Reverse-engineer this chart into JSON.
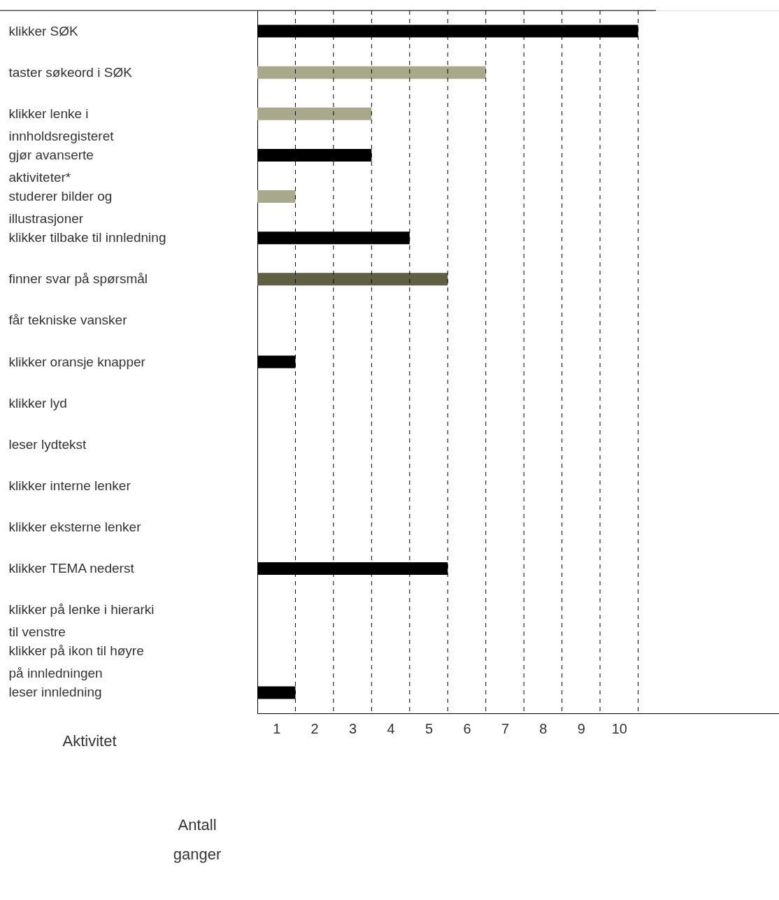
{
  "chart_data": {
    "type": "bar",
    "orientation": "horizontal",
    "annotations": [
      "Aktivitet",
      "Antall\nganger"
    ],
    "categories": [
      "klikker SØK",
      "taster søkeord i SØK",
      "klikker lenke i\ninnholdsregisteret",
      "gjør avanserte\naktiviteter*",
      "studerer bilder og\nillustrasjoner",
      "klikker tilbake til innledning",
      "finner svar på spørsmål",
      "får tekniske vansker",
      "klikker oransje knapper",
      "klikker lyd",
      "leser lydtekst",
      "klikker interne lenker",
      "klikker eksterne lenker",
      "klikker TEMA nederst",
      "klikker på lenke i hierarki\ntil venstre",
      "klikker på ikon til høyre\npå innledningen",
      "leser innledning"
    ],
    "values": [
      10,
      6,
      3,
      3,
      1,
      4,
      5,
      null,
      1,
      null,
      null,
      null,
      null,
      5,
      null,
      null,
      1
    ],
    "colors": [
      "#000000",
      "#a8a88c",
      "#a8a88c",
      "#000000",
      "#a8a88c",
      "#000000",
      "#5f5f46",
      "#000000",
      "#000000",
      "#000000",
      "#000000",
      "#000000",
      "#000000",
      "#000000",
      "#000000",
      "#000000",
      "#000000"
    ],
    "xlim": [
      0,
      13.7
    ],
    "xticks": [
      {
        "value": 0.5,
        "label": "1"
      },
      {
        "value": 1.5,
        "label": "2"
      },
      {
        "value": 2.5,
        "label": "3"
      },
      {
        "value": 3.5,
        "label": "4"
      },
      {
        "value": 4.5,
        "label": "5"
      },
      {
        "value": 5.5,
        "label": "6"
      },
      {
        "value": 6.5,
        "label": "7"
      },
      {
        "value": 7.5,
        "label": "8"
      },
      {
        "value": 8.5,
        "label": "9"
      },
      {
        "value": 9.5,
        "label": "10"
      }
    ],
    "ref_lines": [
      {
        "axis": "x",
        "value": 1,
        "line_style": "dashed"
      },
      {
        "axis": "x",
        "value": 2,
        "line_style": "dashed"
      },
      {
        "axis": "x",
        "value": 3,
        "line_style": "dashed"
      },
      {
        "axis": "x",
        "value": 4,
        "line_style": "dashed"
      },
      {
        "axis": "x",
        "value": 5,
        "line_style": "dashed"
      },
      {
        "axis": "x",
        "value": 6,
        "line_style": "dashed"
      },
      {
        "axis": "x",
        "value": 7,
        "line_style": "dashed"
      },
      {
        "axis": "x",
        "value": 8,
        "line_style": "dashed"
      },
      {
        "axis": "x",
        "value": 9,
        "line_style": "dashed"
      },
      {
        "axis": "x",
        "value": 10,
        "line_style": "dashed"
      }
    ],
    "grid": false
  }
}
